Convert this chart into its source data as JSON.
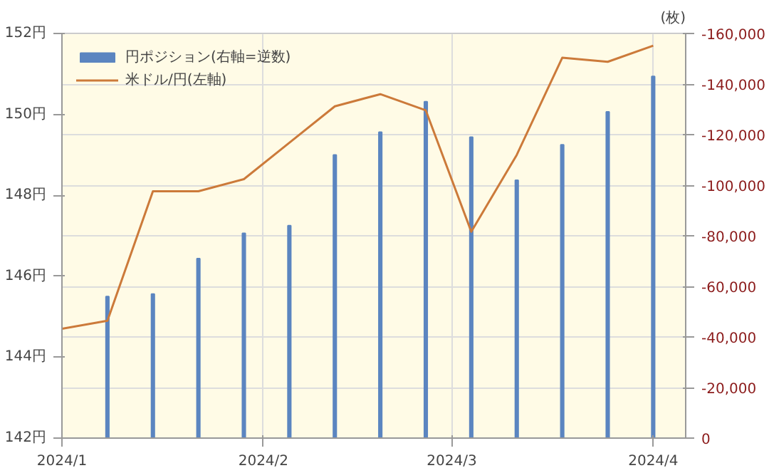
{
  "chart_data": {
    "type": "bar",
    "y2label": "(枚)",
    "x": [
      "2024-01-08",
      "2024-01-15",
      "2024-01-22",
      "2024-01-29",
      "2024-02-05",
      "2024-02-12",
      "2024-02-19",
      "2024-02-26",
      "2024-03-04",
      "2024-03-11",
      "2024-03-18",
      "2024-03-25",
      "2024-04-01"
    ],
    "series": [
      {
        "name": "円ポジション(右軸=逆数)",
        "axis": "y2",
        "color": "#5b85c0",
        "values": [
          -56000,
          -57000,
          -71000,
          -81000,
          -84000,
          -112000,
          -121000,
          -133000,
          -119000,
          -102000,
          -116000,
          -129000,
          -143000
        ]
      },
      {
        "name": "米ドル/円(左軸)",
        "type": "line",
        "color": "#cc7a3a",
        "x": [
          "2024-01-01",
          "2024-01-08",
          "2024-01-15",
          "2024-01-22",
          "2024-01-29",
          "2024-02-05",
          "2024-02-12",
          "2024-02-19",
          "2024-02-26",
          "2024-03-04",
          "2024-03-11",
          "2024-03-18",
          "2024-03-25",
          "2024-04-01"
        ],
        "values": [
          144.7,
          144.9,
          148.1,
          148.1,
          148.4,
          149.3,
          150.2,
          150.5,
          150.1,
          147.1,
          149.0,
          151.4,
          151.3,
          151.7
        ]
      }
    ],
    "xlim": [
      "2024-01-01",
      "2024-04-06"
    ],
    "xticks": [
      {
        "value": "2024-01-01",
        "label": "2024/1"
      },
      {
        "value": "2024-02-01",
        "label": "2024/2"
      },
      {
        "value": "2024-03-01",
        "label": "2024/3"
      },
      {
        "value": "2024-04-01",
        "label": "2024/4"
      }
    ],
    "ylim": [
      142,
      152
    ],
    "yticks": [
      {
        "value": 142,
        "label": "142円"
      },
      {
        "value": 144,
        "label": "144円"
      },
      {
        "value": 146,
        "label": "146円"
      },
      {
        "value": 148,
        "label": "148円"
      },
      {
        "value": 150,
        "label": "150円"
      },
      {
        "value": 152,
        "label": "152円"
      }
    ],
    "y2lim": [
      0,
      -160000
    ],
    "y2ticks": [
      0,
      {
        "value": -20000,
        "label": "-20,000"
      },
      {
        "value": -40000,
        "label": "-40,000"
      },
      {
        "value": -60000,
        "label": "-60,000"
      },
      {
        "value": -80000,
        "label": "-80,000"
      },
      {
        "value": -100000,
        "label": "-100,000"
      },
      {
        "value": -120000,
        "label": "-120,000"
      },
      {
        "value": -140000,
        "label": "-140,000"
      },
      {
        "value": -160000,
        "label": "-160,000"
      }
    ],
    "grid": true,
    "legend": "top left"
  }
}
